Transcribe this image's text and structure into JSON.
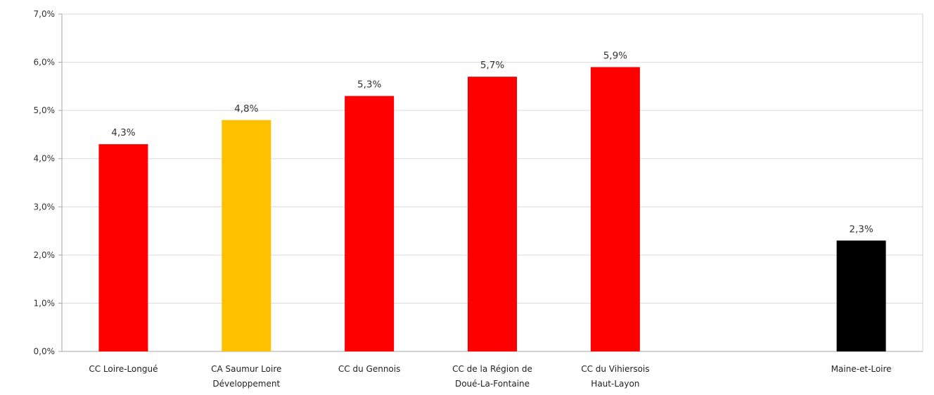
{
  "chart_data": {
    "type": "bar",
    "title": "",
    "xlabel": "",
    "ylabel": "",
    "ylim": [
      0,
      7
    ],
    "y_ticks": [
      "0,0%",
      "1,0%",
      "2,0%",
      "3,0%",
      "4,0%",
      "5,0%",
      "6,0%",
      "7,0%"
    ],
    "grid": true,
    "categories": [
      [
        "CC Loire-Longué"
      ],
      [
        "CA Saumur Loire",
        "Développement"
      ],
      [
        "CC du Gennois"
      ],
      [
        "CC de la Région de",
        "Doué-La-Fontaine"
      ],
      [
        "CC du Vihiersois",
        "Haut-Layon"
      ],
      [
        ""
      ],
      [
        "Maine-et-Loire"
      ]
    ],
    "values": [
      4.3,
      4.8,
      5.3,
      5.7,
      5.9,
      null,
      2.3
    ],
    "data_labels": [
      "4,3%",
      "4,8%",
      "5,3%",
      "5,7%",
      "5,9%",
      "",
      "2,3%"
    ],
    "colors": [
      "#ff0000",
      "#ffc000",
      "#ff0000",
      "#ff0000",
      "#ff0000",
      "#ffffff",
      "#000000"
    ]
  }
}
